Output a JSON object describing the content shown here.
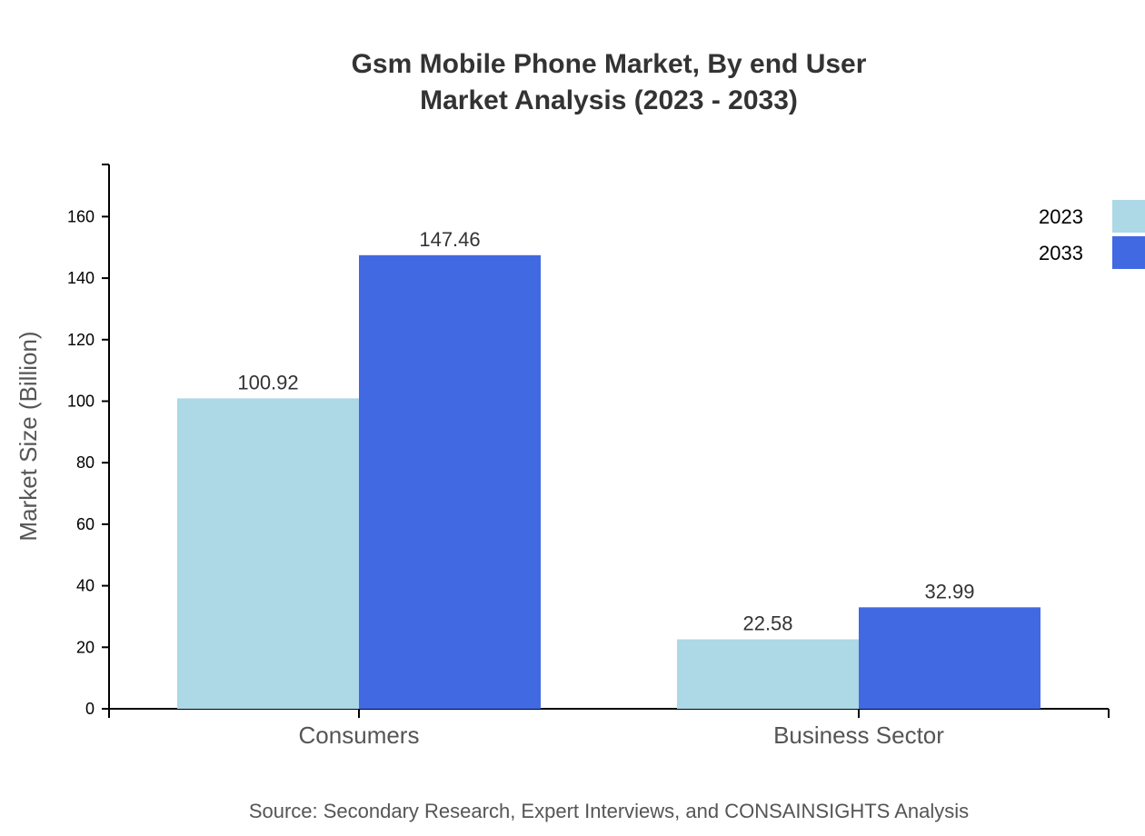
{
  "chart_data": {
    "type": "bar",
    "title": [
      "Gsm Mobile Phone Market, By end User",
      "Market Analysis (2023 - 2033)"
    ],
    "xlabel": "",
    "ylabel": "Market Size (Billion)",
    "categories": [
      "Consumers",
      "Business Sector"
    ],
    "series": [
      {
        "name": "2023",
        "values": [
          100.92,
          22.58
        ],
        "color": "#add8e6"
      },
      {
        "name": "2033",
        "values": [
          147.46,
          32.99
        ],
        "color": "#4169e1"
      }
    ],
    "ylim": [
      0,
      176.95
    ],
    "yticks": [
      0,
      20,
      40,
      60,
      80,
      100,
      120,
      140,
      160
    ],
    "grid": false,
    "legend": "top-right",
    "source": "Source: Secondary Research, Expert Interviews, and CONSAINSIGHTS Analysis"
  }
}
